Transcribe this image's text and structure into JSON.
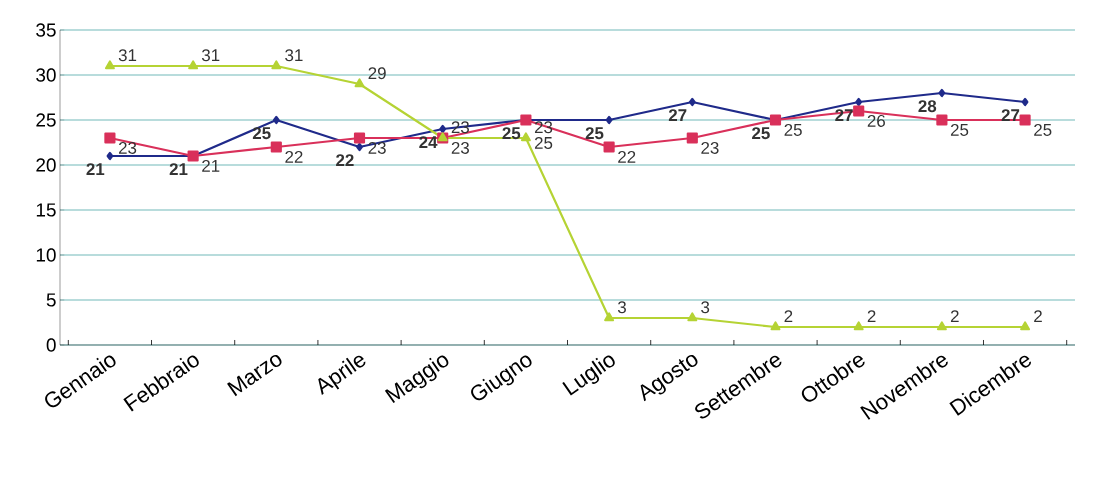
{
  "chart_data": {
    "type": "line",
    "categories": [
      "Gennaio",
      "Febbraio",
      "Marzo",
      "Aprile",
      "Maggio",
      "Giugno",
      "Luglio",
      "Agosto",
      "Settembre",
      "Ottobre",
      "Novembre",
      "Dicembre"
    ],
    "series": [
      {
        "color": "#1f2a8a",
        "marker": "diamond",
        "values": [
          21,
          21,
          25,
          22,
          24,
          25,
          25,
          27,
          25,
          27,
          28,
          27
        ]
      },
      {
        "color": "#d9305a",
        "marker": "square",
        "values": [
          23,
          21,
          22,
          23,
          23,
          25,
          22,
          23,
          25,
          26,
          25,
          25
        ]
      },
      {
        "color": "#b5d334",
        "marker": "triangle",
        "values": [
          31,
          31,
          31,
          29,
          23,
          23,
          3,
          3,
          2,
          2,
          2,
          2
        ]
      }
    ],
    "ylim": [
      0,
      35
    ],
    "yticks": [
      0,
      5,
      10,
      15,
      20,
      25,
      30,
      35
    ],
    "grid": "y",
    "data_labels": true,
    "line_style": "solid"
  }
}
